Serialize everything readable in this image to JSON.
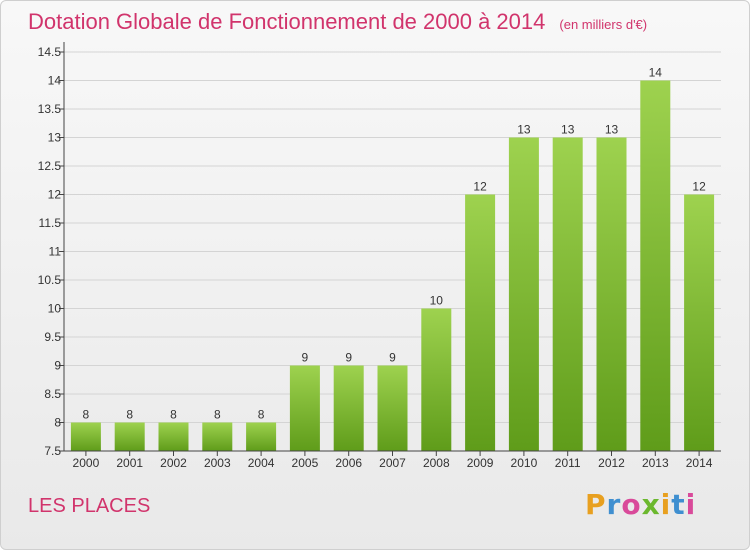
{
  "title": "Dotation Globale de Fonctionnement de 2000 à 2014",
  "subtitle": "(en milliers d'€)",
  "commune": "LES PLACES",
  "brand": "Proxiti",
  "colors": {
    "title": "#d1346c",
    "bar_top": "#9ed24f",
    "bar_bottom": "#5f9c1a",
    "axis": "#444444",
    "grid": "#d4d4d4"
  },
  "chart_data": {
    "type": "bar",
    "title": "Dotation Globale de Fonctionnement de 2000 à 2014",
    "xlabel": "",
    "ylabel": "",
    "categories": [
      "2000",
      "2001",
      "2002",
      "2003",
      "2004",
      "2005",
      "2006",
      "2007",
      "2008",
      "2009",
      "2010",
      "2011",
      "2012",
      "2013",
      "2014"
    ],
    "values": [
      8,
      8,
      8,
      8,
      8,
      9,
      9,
      9,
      10,
      12,
      13,
      13,
      13,
      14,
      12
    ],
    "data_labels": [
      "8",
      "8",
      "8",
      "8",
      "8",
      "9",
      "9",
      "9",
      "10",
      "12",
      "13",
      "13",
      "13",
      "14",
      "12"
    ],
    "ylim": [
      7.5,
      14.5
    ],
    "yticks": [
      7.5,
      8,
      8.5,
      9,
      9.5,
      10,
      10.5,
      11,
      11.5,
      12,
      12.5,
      13,
      13.5,
      14,
      14.5
    ],
    "ytick_labels": [
      "7.5",
      "8",
      "8.5",
      "9",
      "9.5",
      "10",
      "10.5",
      "11",
      "11.5",
      "12",
      "12.5",
      "13",
      "13.5",
      "14",
      "14.5"
    ],
    "grid": true,
    "legend": "none"
  }
}
